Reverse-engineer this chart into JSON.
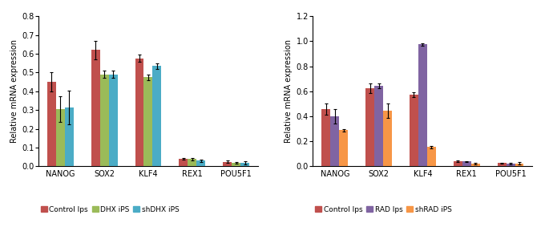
{
  "chart1": {
    "categories": [
      "NANOG",
      "SOX2",
      "KLF4",
      "REX1",
      "POU5F1"
    ],
    "series": {
      "Control Ips": [
        0.45,
        0.62,
        0.575,
        0.04,
        0.025
      ],
      "DHX iPS": [
        0.305,
        0.49,
        0.475,
        0.038,
        0.018
      ],
      "shDHX iPS": [
        0.315,
        0.49,
        0.535,
        0.03,
        0.02
      ]
    },
    "errors": {
      "Control Ips": [
        0.05,
        0.05,
        0.02,
        0.005,
        0.005
      ],
      "DHX iPS": [
        0.07,
        0.02,
        0.015,
        0.005,
        0.005
      ],
      "shDHX iPS": [
        0.09,
        0.02,
        0.015,
        0.005,
        0.008
      ]
    },
    "colors": {
      "Control Ips": "#C0504D",
      "DHX iPS": "#9BBB59",
      "shDHX iPS": "#4BACC6"
    },
    "ylabel": "Relative mRNA expression",
    "ylim": [
      0,
      0.8
    ],
    "yticks": [
      0,
      0.1,
      0.2,
      0.3,
      0.4,
      0.5,
      0.6,
      0.7,
      0.8
    ]
  },
  "chart2": {
    "categories": [
      "NANOG",
      "SOX2",
      "KLF4",
      "REX1",
      "POU5F1"
    ],
    "series": {
      "Control Ips": [
        0.46,
        0.625,
        0.575,
        0.04,
        0.025
      ],
      "RAD Ips": [
        0.4,
        0.645,
        0.975,
        0.038,
        0.022
      ],
      "shRAD iPS": [
        0.29,
        0.445,
        0.155,
        0.022,
        0.022
      ]
    },
    "errors": {
      "Control Ips": [
        0.045,
        0.04,
        0.02,
        0.005,
        0.005
      ],
      "RAD Ips": [
        0.055,
        0.02,
        0.01,
        0.005,
        0.005
      ],
      "shRAD iPS": [
        0.01,
        0.06,
        0.01,
        0.005,
        0.01
      ]
    },
    "colors": {
      "Control Ips": "#C0504D",
      "RAD Ips": "#8064A2",
      "shRAD iPS": "#F79646"
    },
    "ylabel": "Relative mRNA expression",
    "ylim": [
      0,
      1.2
    ],
    "yticks": [
      0,
      0.2,
      0.4,
      0.6,
      0.8,
      1.0,
      1.2
    ]
  },
  "bar_width": 0.2,
  "figsize": [
    6.85,
    2.88
  ],
  "dpi": 100
}
